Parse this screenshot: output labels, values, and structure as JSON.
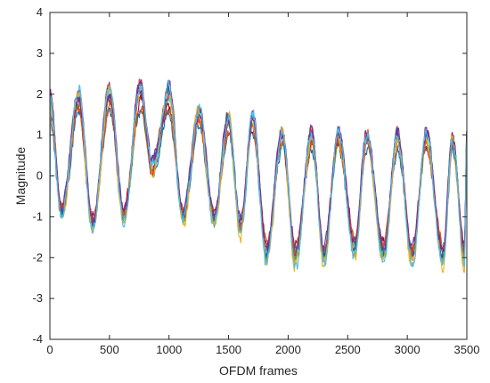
{
  "chart_data": {
    "type": "line",
    "title": "",
    "xlabel": "OFDM frames",
    "ylabel": "Magnitude",
    "xlim": [
      0,
      3500
    ],
    "ylim": [
      -4,
      4
    ],
    "xticks": [
      0,
      500,
      1000,
      1500,
      2000,
      2500,
      3000,
      3500
    ],
    "yticks": [
      -4,
      -3,
      -2,
      -1,
      0,
      1,
      2,
      3,
      4
    ],
    "xtick_labels": [
      "0",
      "500",
      "1000",
      "1500",
      "2000",
      "2500",
      "3000",
      "3500"
    ],
    "ytick_labels": [
      "-4",
      "-3",
      "-2",
      "-1",
      "0",
      "1",
      "2",
      "3",
      "4"
    ],
    "grid": false,
    "legend": "none",
    "series_count": 12,
    "colors": [
      "#0072BD",
      "#D95319",
      "#EDB120",
      "#7E2F8E",
      "#77AC30",
      "#4DBEEE",
      "#A2142F",
      "#0072BD",
      "#D95319",
      "#EDB120",
      "#7E2F8E",
      "#4DBEEE"
    ],
    "envelope": {
      "x": [
        0,
        100,
        240,
        360,
        500,
        620,
        760,
        860,
        1000,
        1120,
        1250,
        1380,
        1500,
        1600,
        1700,
        1820,
        1950,
        2060,
        2200,
        2300,
        2420,
        2560,
        2660,
        2800,
        2920,
        3040,
        3160,
        3300,
        3380,
        3480,
        3500
      ],
      "y": [
        1.8,
        -0.9,
        1.9,
        -1.2,
        2.0,
        -1.0,
        2.05,
        0.2,
        1.95,
        -1.0,
        1.5,
        -1.05,
        1.35,
        -1.3,
        1.35,
        -1.9,
        1.0,
        -2.0,
        0.95,
        -2.0,
        0.95,
        -1.8,
        0.95,
        -1.9,
        0.9,
        -2.0,
        0.9,
        -2.0,
        0.9,
        -2.0,
        0.9
      ]
    }
  }
}
